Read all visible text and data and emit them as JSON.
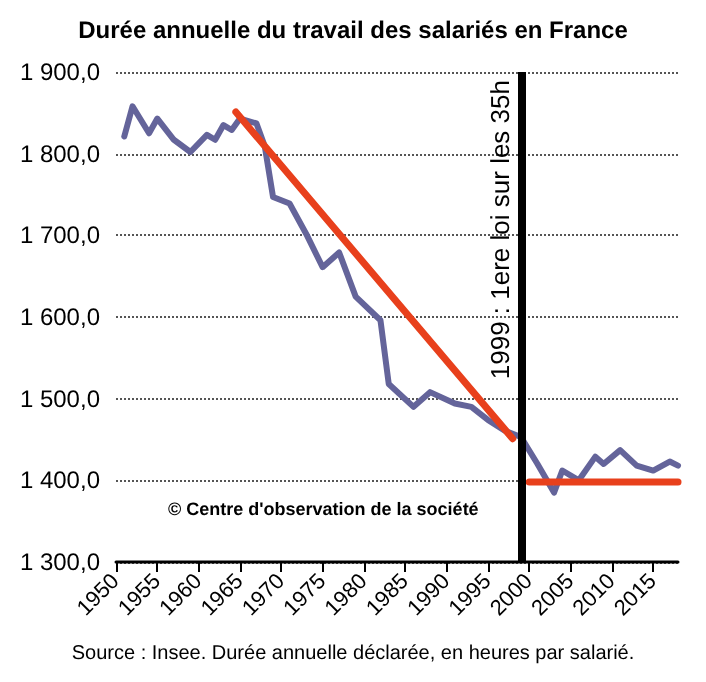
{
  "chart_data": {
    "type": "line",
    "title": "Durée annuelle du travail des salariés en France",
    "xlim": [
      1950,
      2018
    ],
    "xticks": [
      1950,
      1955,
      1960,
      1965,
      1970,
      1975,
      1980,
      1985,
      1990,
      1995,
      2000,
      2005,
      2010,
      2015
    ],
    "ylim": [
      1300,
      1900
    ],
    "yticks": [
      {
        "value": 1300,
        "label": "1 300,0"
      },
      {
        "value": 1400,
        "label": "1 400,0"
      },
      {
        "value": 1500,
        "label": "1 500,0"
      },
      {
        "value": 1600,
        "label": "1 600,0"
      },
      {
        "value": 1700,
        "label": "1 700,0"
      },
      {
        "value": 1800,
        "label": "1 800,0"
      },
      {
        "value": 1900,
        "label": "1 900,0"
      }
    ],
    "grid": "y",
    "marker": "none",
    "series": [
      {
        "color": "#64649a",
        "x": [
          1951,
          1952,
          1954,
          1955,
          1957,
          1959,
          1961,
          1962,
          1963,
          1964,
          1965,
          1967,
          1968,
          1969,
          1971,
          1973,
          1975,
          1977,
          1979,
          1982,
          1983,
          1986,
          1988,
          1991,
          1993,
          1995,
          1997,
          1999,
          2001,
          2003,
          2004,
          2006,
          2008,
          2009,
          2011,
          2013,
          2015,
          2017,
          2018
        ],
        "values": [
          1821,
          1858,
          1825,
          1843,
          1817,
          1802,
          1823,
          1817,
          1835,
          1829,
          1843,
          1837,
          1809,
          1747,
          1739,
          1702,
          1661,
          1679,
          1625,
          1596,
          1518,
          1490,
          1508,
          1494,
          1490,
          1474,
          1461,
          1453,
          1420,
          1385,
          1412,
          1400,
          1429,
          1420,
          1437,
          1418,
          1412,
          1423,
          1418
        ]
      },
      {
        "type": "line",
        "color": "#e8401c",
        "x": [
          1964.5,
          1998
        ],
        "values": [
          1851,
          1451
        ]
      },
      {
        "type": "line",
        "color": "#e8401c",
        "x": [
          2000,
          2018
        ],
        "values": [
          1398,
          1398
        ]
      }
    ],
    "ref_lines": [
      {
        "axis": "x",
        "value": 1999,
        "label": "1999 : 1ere loi sur les 35h",
        "color": "#000000"
      }
    ],
    "annotations": [
      "© Centre d'observation de la société",
      "Source : Insee. Durée annuelle déclarée, en heures par salarié."
    ]
  }
}
